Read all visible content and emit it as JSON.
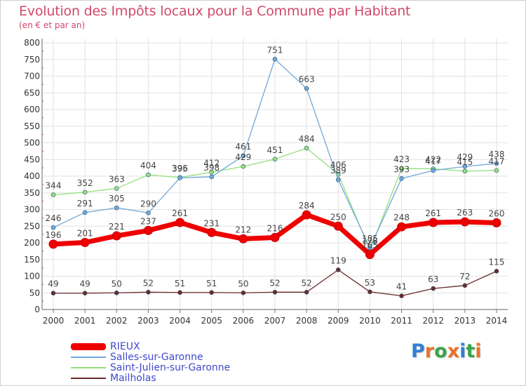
{
  "header": {
    "title": "Evolution des Impôts locaux pour la Commune par Habitant",
    "subtitle": "(en € et par an)"
  },
  "logo": {
    "text": "Proxiti"
  },
  "chart_data": {
    "type": "line",
    "title": "Evolution des Impôts locaux pour la Commune par Habitant",
    "subtitle": "(en € et par an)",
    "xlabel": "",
    "ylabel": "",
    "x": [
      "2000",
      "2001",
      "2002",
      "2003",
      "2004",
      "2005",
      "2006",
      "2007",
      "2008",
      "2009",
      "2010",
      "2011",
      "2012",
      "2013",
      "2014"
    ],
    "ylim": [
      0,
      800
    ],
    "yticks": [
      0,
      50,
      100,
      150,
      200,
      250,
      300,
      350,
      400,
      450,
      500,
      550,
      600,
      650,
      700,
      750,
      800
    ],
    "grid": true,
    "legend_position": "bottom-left",
    "series": [
      {
        "name": "RIEUX",
        "color": "#ee0000",
        "values": [
          196,
          201,
          221,
          237,
          261,
          231,
          212,
          216,
          284,
          250,
          165,
          248,
          261,
          263,
          260
        ],
        "labels": [
          "196",
          "201",
          "221",
          "237",
          "261",
          "231",
          "212",
          "216",
          "284",
          "250",
          "165",
          "248",
          "261",
          "263",
          "260"
        ]
      },
      {
        "name": "Salles-sur-Garonne",
        "color": "#6fa8dc",
        "values": [
          246,
          291,
          305,
          290,
          395,
          398,
          461,
          751,
          663,
          389,
          185,
          393,
          417,
          429,
          438
        ],
        "labels": [
          "246",
          "291",
          "305",
          "290",
          "395",
          "398",
          "461",
          "751",
          "663",
          "389",
          "185",
          "393",
          "417",
          "429",
          "438"
        ]
      },
      {
        "name": "Saint-Julien-sur-Garonne",
        "color": "#93e07c",
        "values": [
          344,
          352,
          363,
          404,
          396,
          412,
          429,
          451,
          484,
          406,
          178,
          423,
          422,
          415,
          417
        ],
        "labels": [
          "344",
          "352",
          "363",
          "404",
          "396",
          "412",
          "429",
          "451",
          "484",
          "406",
          "178",
          "423",
          "422",
          "415",
          "417"
        ]
      },
      {
        "name": "Mailholas",
        "color": "#6b2a2a",
        "values": [
          49,
          49,
          50,
          52,
          51,
          51,
          50,
          52,
          52,
          119,
          53,
          41,
          63,
          72,
          115
        ],
        "labels": [
          "49",
          "49",
          "50",
          "52",
          "51",
          "51",
          "50",
          "52",
          "52",
          "119",
          "53",
          "41",
          "63",
          "72",
          "115"
        ]
      }
    ]
  }
}
